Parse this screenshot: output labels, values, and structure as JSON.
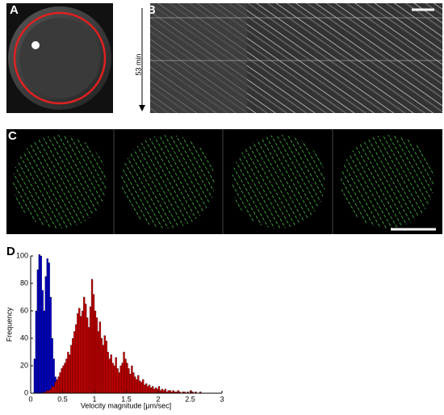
{
  "panels": {
    "a": {
      "label": "A"
    },
    "b": {
      "label": "B",
      "time_label": "53 min"
    },
    "c": {
      "label": "C"
    },
    "d": {
      "label": "D"
    }
  },
  "chart_data": {
    "type": "histogram",
    "xlabel": "Velocity magnitude [μm/sec]",
    "ylabel": "Frequency",
    "xlim": [
      0,
      3
    ],
    "ylim": [
      0,
      100
    ],
    "xticks": [
      0,
      0.5,
      1,
      1.5,
      2,
      2.5,
      3
    ],
    "yticks": [
      0,
      20,
      40,
      60,
      80,
      100
    ],
    "series": [
      {
        "color": "#0000cc",
        "bins": [
          0.05,
          0.075,
          0.1,
          0.125,
          0.15,
          0.175,
          0.2,
          0.225,
          0.25,
          0.275,
          0.3,
          0.325,
          0.35,
          0.375,
          0.4,
          0.425,
          0.45
        ],
        "values": [
          25,
          60,
          90,
          101,
          100,
          75,
          60,
          85,
          98,
          95,
          70,
          40,
          25,
          12,
          6,
          3
        ]
      },
      {
        "color": "#cc0000",
        "bins": [
          0.2,
          0.225,
          0.25,
          0.275,
          0.3,
          0.325,
          0.35,
          0.375,
          0.4,
          0.425,
          0.45,
          0.475,
          0.5,
          0.525,
          0.55,
          0.575,
          0.6,
          0.625,
          0.65,
          0.675,
          0.7,
          0.725,
          0.75,
          0.775,
          0.8,
          0.825,
          0.85,
          0.875,
          0.9,
          0.925,
          0.95,
          0.975,
          1,
          1.025,
          1.05,
          1.075,
          1.1,
          1.125,
          1.15,
          1.175,
          1.2,
          1.225,
          1.25,
          1.275,
          1.3,
          1.325,
          1.35,
          1.375,
          1.4,
          1.425,
          1.45,
          1.475,
          1.5,
          1.525,
          1.55,
          1.575,
          1.6,
          1.625,
          1.65,
          1.675,
          1.7,
          1.725,
          1.75,
          1.775,
          1.8,
          1.825,
          1.85,
          1.875,
          1.9,
          1.925,
          1.95,
          1.975,
          2,
          2.025,
          2.05,
          2.075,
          2.1,
          2.125,
          2.15,
          2.175,
          2.2,
          2.225,
          2.25,
          2.275,
          2.3,
          2.325,
          2.35,
          2.375,
          2.4,
          2.425,
          2.45,
          2.475,
          2.5,
          2.525,
          2.55,
          2.575,
          2.6,
          2.625,
          2.65,
          2.675,
          2.7
        ],
        "values": [
          1,
          1,
          2,
          2,
          3,
          5,
          5,
          8,
          10,
          12,
          15,
          18,
          20,
          22,
          25,
          30,
          28,
          35,
          40,
          45,
          50,
          58,
          62,
          56,
          60,
          70,
          65,
          55,
          48,
          63,
          83,
          72,
          60,
          55,
          45,
          52,
          40,
          35,
          42,
          38,
          30,
          25,
          28,
          22,
          20,
          26,
          18,
          15,
          20,
          22,
          30,
          25,
          22,
          18,
          14,
          20,
          15,
          12,
          10,
          13,
          9,
          8,
          10,
          6,
          7,
          5,
          6,
          4,
          5,
          3,
          4,
          3,
          5,
          2,
          3,
          2,
          3,
          1,
          2,
          2,
          1,
          2,
          1,
          1,
          2,
          1,
          0,
          1,
          1,
          0,
          1,
          0,
          2,
          1,
          0,
          1,
          0,
          0,
          1,
          0
        ]
      }
    ]
  }
}
